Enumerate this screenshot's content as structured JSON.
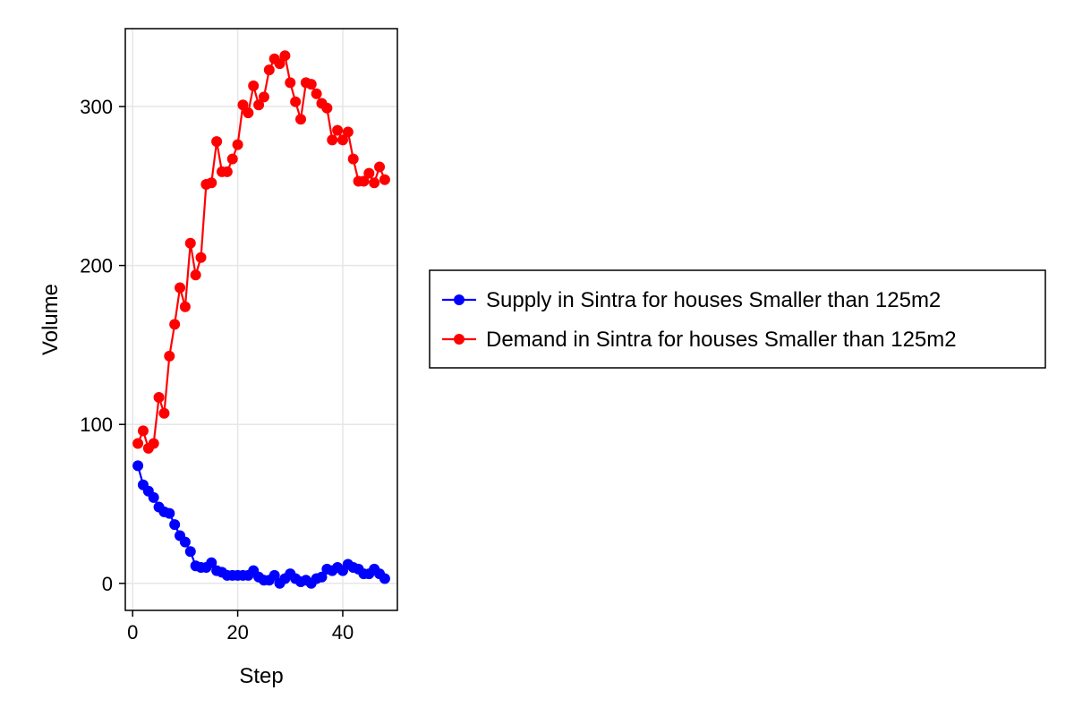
{
  "chart_data": {
    "type": "line",
    "xlabel": "Step",
    "ylabel": "Volume",
    "xlim": [
      -1.4,
      50.4
    ],
    "ylim": [
      -17,
      349
    ],
    "x_ticks": [
      0,
      20,
      40
    ],
    "y_ticks": [
      0,
      100,
      200,
      300
    ],
    "grid": true,
    "legend_position": "right",
    "x": [
      1,
      2,
      3,
      4,
      5,
      6,
      7,
      8,
      9,
      10,
      11,
      12,
      13,
      14,
      15,
      16,
      17,
      18,
      19,
      20,
      21,
      22,
      23,
      24,
      25,
      26,
      27,
      28,
      29,
      30,
      31,
      32,
      33,
      34,
      35,
      36,
      37,
      38,
      39,
      40,
      41,
      42,
      43,
      44,
      45,
      46,
      47,
      48
    ],
    "series": [
      {
        "name": "Supply in Sintra for houses Smaller than 125m2",
        "color": "#0000ff",
        "values": [
          74,
          62,
          58,
          54,
          48,
          45,
          44,
          37,
          30,
          26,
          20,
          11,
          10,
          10,
          13,
          8,
          7,
          5,
          5,
          5,
          5,
          5,
          8,
          4,
          2,
          2,
          5,
          0,
          3,
          6,
          3,
          1,
          2,
          0,
          3,
          4,
          9,
          8,
          10,
          8,
          12,
          10,
          9,
          6,
          6,
          9,
          6,
          3
        ]
      },
      {
        "name": "Demand in Sintra for houses Smaller than 125m2",
        "color": "#ff0000",
        "values": [
          88,
          96,
          85,
          88,
          117,
          107,
          143,
          163,
          186,
          174,
          214,
          194,
          205,
          251,
          252,
          278,
          259,
          259,
          267,
          276,
          301,
          296,
          313,
          301,
          306,
          323,
          330,
          327,
          332,
          315,
          303,
          292,
          315,
          314,
          308,
          302,
          299,
          279,
          285,
          279,
          284,
          267,
          253,
          253,
          258,
          252,
          262,
          254
        ]
      }
    ]
  }
}
